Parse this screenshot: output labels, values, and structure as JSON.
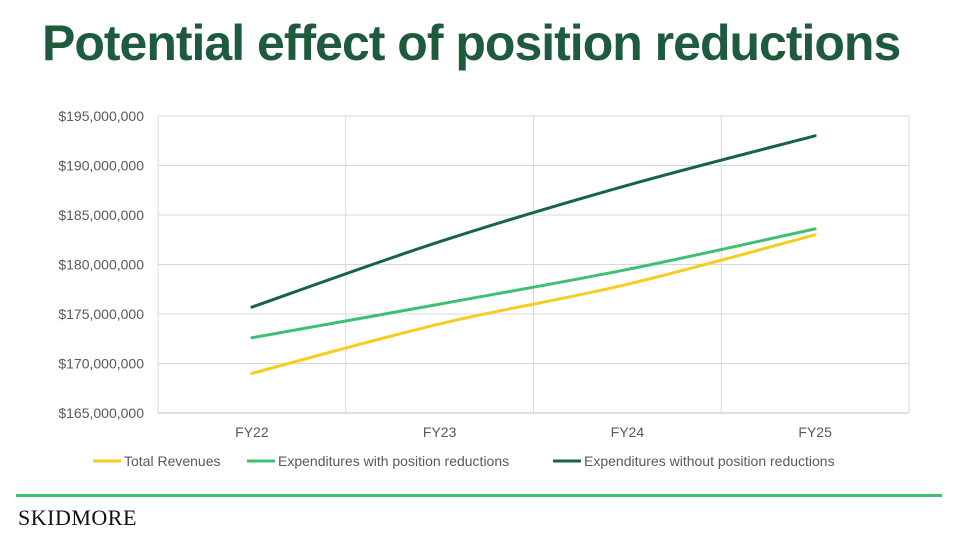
{
  "slide": {
    "title": "Potential effect of position reductions",
    "logo_text": "SKIDMORE"
  },
  "colors": {
    "title": "#1e5b3c",
    "rule": "#3dbf74"
  },
  "chart_data": {
    "type": "line",
    "title": "",
    "xlabel": "",
    "ylabel": "",
    "categories": [
      "FY22",
      "FY23",
      "FY24",
      "FY25"
    ],
    "ylim": [
      165000000,
      195000000
    ],
    "yticks": [
      165000000,
      170000000,
      175000000,
      180000000,
      185000000,
      190000000,
      195000000
    ],
    "ytick_labels": [
      "$165,000,000",
      "$170,000,000",
      "$175,000,000",
      "$180,000,000",
      "$185,000,000",
      "$190,000,000",
      "$195,000,000"
    ],
    "grid": true,
    "legend_position": "bottom",
    "series": [
      {
        "name": "Total Revenues",
        "color": "#f5cd1e",
        "values": [
          169000000,
          174000000,
          178000000,
          183000000
        ]
      },
      {
        "name": "Expenditures with position reductions",
        "color": "#3dbf74",
        "values": [
          172600000,
          176000000,
          179500000,
          183600000
        ]
      },
      {
        "name": "Expenditures without position reductions",
        "color": "#17634a",
        "values": [
          175700000,
          182300000,
          188000000,
          193000000
        ]
      }
    ]
  }
}
